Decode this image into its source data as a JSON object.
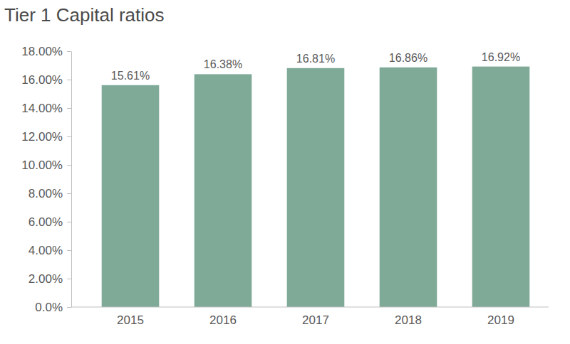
{
  "chart_data": {
    "type": "bar",
    "title": "Tier 1 Capital ratios",
    "categories": [
      "2015",
      "2016",
      "2017",
      "2018",
      "2019"
    ],
    "values": [
      15.61,
      16.38,
      16.81,
      16.86,
      16.92
    ],
    "value_labels": [
      "15.61%",
      "16.38%",
      "16.81%",
      "16.86%",
      "16.92%"
    ],
    "data_labels": true,
    "color": "#7faa98",
    "ylim": [
      0,
      18
    ],
    "yticks": [
      {
        "value": 0,
        "label": "0.0%"
      },
      {
        "value": 2,
        "label": "2.00%"
      },
      {
        "value": 4,
        "label": "4.00%"
      },
      {
        "value": 6,
        "label": "6.00%"
      },
      {
        "value": 8,
        "label": "8.00%"
      },
      {
        "value": 10,
        "label": "10.00%"
      },
      {
        "value": 12,
        "label": "12.00%"
      },
      {
        "value": 14,
        "label": "14.00%"
      },
      {
        "value": 16,
        "label": "16.00%"
      },
      {
        "value": 18,
        "label": "18.00%"
      }
    ],
    "grid": false
  }
}
